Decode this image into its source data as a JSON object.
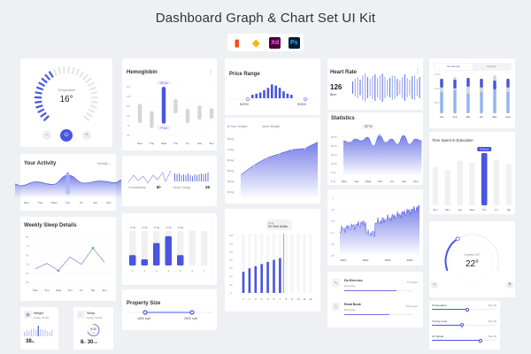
{
  "header": {
    "title": "Dashboard  Graph & Chart Set UI Kit",
    "tools": [
      {
        "name": "figma-icon",
        "label": "",
        "color": "#f24e1e"
      },
      {
        "name": "sketch-icon",
        "label": "",
        "color": "#fdb300"
      },
      {
        "name": "xd-icon",
        "label": "Xd",
        "color": "#470137"
      },
      {
        "name": "photoshop-icon",
        "label": "Ps",
        "color": "#001e36"
      }
    ]
  },
  "colors": {
    "accent": "#4a55e0",
    "light": "#8fa8f0",
    "grey": "#dcdcdc"
  },
  "temperature": {
    "label": "Temperature",
    "value": "16°",
    "level": 0.4,
    "minus": "−",
    "plus": "+"
  },
  "hemoglobin": {
    "title": "Hemoglobin",
    "yticks": [
      "150",
      "130",
      "110",
      "90",
      "70",
      "50"
    ],
    "days": [
      "Mon",
      "Tue",
      "Wed",
      "Thu",
      "Fri",
      "Sat",
      "Sun"
    ],
    "ranges": [
      [
        115,
        75
      ],
      [
        100,
        65
      ],
      [
        150,
        74
      ],
      [
        125,
        95
      ],
      [
        105,
        75
      ],
      [
        112,
        82
      ],
      [
        106,
        84
      ]
    ],
    "active": 2,
    "tip_high": "150 ngs",
    "tip_low": "74 ngs"
  },
  "activity": {
    "title": "Your Activity",
    "period": "Weekly",
    "days": [
      "Mon",
      "Tue",
      "Wed",
      "Thu",
      "Fri",
      "Sat",
      "Sun"
    ],
    "values": [
      40,
      55,
      45,
      80,
      50,
      58,
      52
    ],
    "active": 3
  },
  "contractions": {
    "label": "Contractions",
    "value": "8/-",
    "kicks_label": "Kicks Today",
    "kicks_value": "26"
  },
  "sleep_weekly": {
    "title": "Weekly Sleep Details",
    "yticks": [
      "8h",
      "7h",
      "6h",
      "5h",
      "4h",
      "3h"
    ],
    "days": [
      "Mon",
      "Tue",
      "Wed",
      "Thu",
      "Fri",
      "Sat",
      "Sun"
    ],
    "values": [
      4.5,
      5.1,
      4.3,
      5.8,
      5.0,
      6.8,
      5.2
    ]
  },
  "weight_small": {
    "title": "Weight",
    "subtitle": "Today, 09:30",
    "value": "38",
    "unit": "kg"
  },
  "sleep_small": {
    "title": "Sleep",
    "subtitle": "Today, 09:30",
    "ring": "8:30",
    "ring_sub": "hrs",
    "value_h": "8",
    "unit_h": "hr",
    "value_m": "30",
    "unit_m": "min",
    "progress": 0.7
  },
  "gain_bars": {
    "labels": [
      "+1 kg",
      "+1 kg",
      "+1 kg",
      "+1 kg",
      "+1 kg"
    ],
    "categories": [
      "1",
      "2",
      "3",
      "4",
      "5",
      "6",
      "7"
    ],
    "values": [
      0.3,
      0.18,
      0.65,
      0.85,
      0.3,
      0,
      0
    ]
  },
  "property": {
    "title": "Property Size",
    "min": "1800 sqft",
    "max": "2500 sqft"
  },
  "price": {
    "title": "Price Range",
    "min": "$2000",
    "max": "$3500",
    "bars": [
      3,
      4,
      5,
      7,
      9,
      12,
      11,
      9,
      6,
      4,
      3
    ]
  },
  "weight_chart": {
    "legend": [
      "Your Weight",
      "Ideal Weight"
    ],
    "yticks": [
      "80 kg",
      "70 kg",
      "60 kg",
      "50 kg",
      "40 kg",
      "30 kg"
    ],
    "values": [
      46,
      55,
      62,
      66,
      70,
      71,
      77
    ]
  },
  "active": {
    "tip_title": "Total",
    "tip_value": "90 Time Active",
    "yticks": [
      "140",
      "120",
      "100",
      "80",
      "60",
      "40",
      "20",
      "0"
    ],
    "x": [
      "1",
      "2",
      "3",
      "4",
      "5",
      "6",
      "7",
      "8",
      "9",
      "10",
      "11",
      "12"
    ],
    "values": [
      50,
      58,
      63,
      68,
      73,
      78,
      82,
      0,
      0,
      0,
      0,
      0
    ]
  },
  "heart": {
    "title": "Heart Rate",
    "value": "126",
    "unit": "Bpm"
  },
  "statistics": {
    "title": "Statistics",
    "tip": "22 %",
    "yticks": [
      "25 %",
      "20 %",
      "15 %",
      "10 %",
      "5 %",
      "0 %"
    ],
    "days": [
      "Mon",
      "Tue",
      "Wed",
      "Thu",
      "Fri",
      "Sat",
      "Sun"
    ],
    "values": [
      20,
      19,
      21,
      20,
      22,
      17,
      23,
      19,
      21,
      18,
      23,
      18,
      21,
      20
    ]
  },
  "timeseries": {
    "yticks": [
      "1",
      "0.9",
      "0.8",
      "0.7",
      "0.6",
      "0.5"
    ],
    "years": [
      "2014",
      "2016",
      "2018",
      "2020"
    ]
  },
  "habits": [
    {
      "title": "Do Exercise",
      "subtitle": "Everyday",
      "count": "5/7 Days",
      "progress": 0.75
    },
    {
      "title": "Read Book",
      "subtitle": "Everyday",
      "count": "4/10 Days",
      "progress": 0.65
    }
  ],
  "stacked": {
    "tabs": [
      "Six Months",
      "Monthly"
    ],
    "rows": [
      "Run",
      "Gym",
      "Cycle"
    ],
    "months": [
      "Jan",
      "Feb",
      "Mar",
      "Apr",
      "May",
      "June"
    ]
  },
  "education": {
    "title": "Time Spent in Education",
    "tip": "8 Hours",
    "days": [
      "Sun",
      "Mon",
      "Tue",
      "Wed",
      "Thu",
      "Fri",
      "Sat"
    ],
    "values": [
      6,
      5.5,
      7,
      6.7,
      8.2,
      7.2,
      6.5
    ],
    "active": 4
  },
  "thermostat": {
    "label": "Current 24°",
    "value": "22°",
    "level": 0.35,
    "minus": "−",
    "plus": "+"
  },
  "sliders": [
    {
      "label": "Temperature",
      "max": "Max 30",
      "value": "24",
      "fill": 0.55
    },
    {
      "label": "Tuning Level",
      "max": "Max 50",
      "value": "24",
      "fill": 0.47
    },
    {
      "label": "Air Speed",
      "max": "Max 35",
      "value": "28",
      "fill": 0.75
    }
  ]
}
